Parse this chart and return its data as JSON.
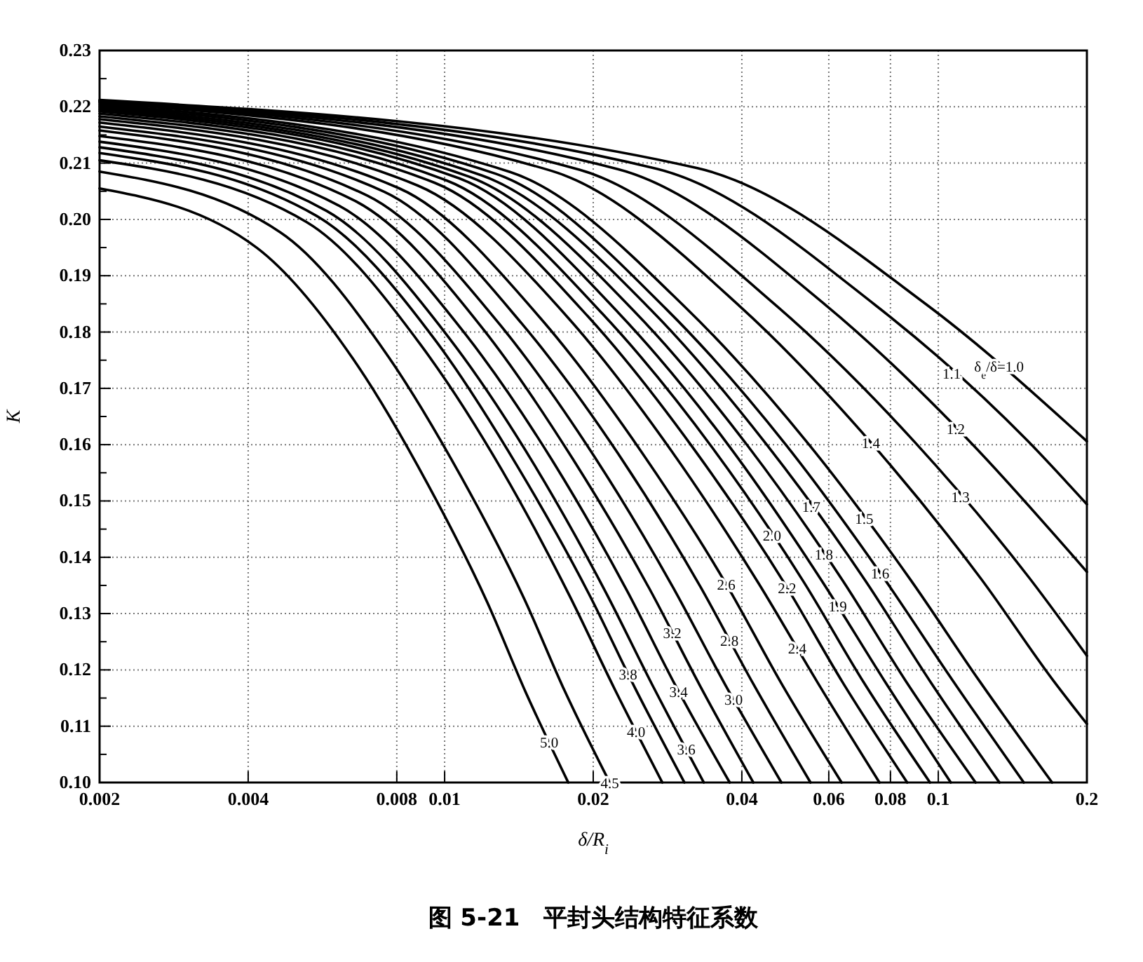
{
  "chart_data": {
    "type": "line",
    "title": "图 5-21　平封头结构特征系数",
    "xlabel": "δ/R$_{i}$",
    "ylabel": "K",
    "log": "x",
    "grid": true,
    "xlim": [
      0.002,
      0.2
    ],
    "xticks": [
      0.002,
      0.004,
      0.008,
      0.01,
      0.02,
      0.04,
      0.06,
      0.08,
      0.1,
      0.2
    ],
    "ylim": [
      0.1,
      0.23
    ],
    "yticks": [
      {
        "value": 0.1,
        "label": "0.10"
      },
      {
        "value": 0.105,
        "label": null
      },
      0.11,
      {
        "value": 0.115,
        "label": null
      },
      0.12,
      {
        "value": 0.125,
        "label": null
      },
      0.13,
      {
        "value": 0.135,
        "label": null
      },
      0.14,
      {
        "value": 0.145,
        "label": null
      },
      0.15,
      {
        "value": 0.155,
        "label": null
      },
      0.16,
      {
        "value": 0.165,
        "label": null
      },
      0.17,
      {
        "value": 0.175,
        "label": null
      },
      0.18,
      {
        "value": 0.185,
        "label": null
      },
      0.19,
      {
        "value": 0.195,
        "label": null
      },
      {
        "value": 0.2,
        "label": "0.20"
      },
      {
        "value": 0.205,
        "label": null
      },
      0.21,
      {
        "value": 0.215,
        "label": null
      },
      0.22,
      {
        "value": 0.225,
        "label": null
      },
      0.23
    ],
    "series": [
      {
        "name": "δ$_{e}$/δ=1.0",
        "color": "#000000",
        "x": [
          0.002,
          0.0325,
          0.0949,
          0.2
        ],
        "values": [
          0.2212,
          0.2091,
          0.1848,
          0.1606
        ]
      },
      {
        "name": "1.1",
        "color": "#000000",
        "x": [
          0.002,
          0.0269,
          0.0745,
          0.152,
          0.2
        ],
        "values": [
          0.2211,
          0.209,
          0.1848,
          0.1606,
          0.1494
        ]
      },
      {
        "name": "1.2",
        "color": "#000000",
        "x": [
          0.002,
          0.0225,
          0.0593,
          0.116,
          0.2
        ],
        "values": [
          0.221,
          0.2089,
          0.1847,
          0.1605,
          0.1374
        ]
      },
      {
        "name": "1.3",
        "color": "#000000",
        "x": [
          0.002,
          0.0188,
          0.0471,
          0.0895,
          0.153,
          0.2
        ],
        "values": [
          0.2209,
          0.2088,
          0.1846,
          0.1605,
          0.1363,
          0.1225
        ]
      },
      {
        "name": "1.4",
        "color": "#000000",
        "x": [
          0.002,
          0.0165,
          0.0397,
          0.073,
          0.122,
          0.171,
          0.2
        ],
        "values": [
          0.2207,
          0.2086,
          0.1845,
          0.1604,
          0.1362,
          0.1181,
          0.1104
        ]
      },
      {
        "name": "1.5",
        "color": "#000000",
        "x": [
          0.002,
          0.0136,
          0.0308,
          0.0545,
          0.0877,
          0.121,
          0.17
        ],
        "values": [
          0.2204,
          0.2084,
          0.1843,
          0.1602,
          0.1361,
          0.1181,
          0.1
        ]
      },
      {
        "name": "1.6",
        "color": "#000000",
        "x": [
          0.002,
          0.0127,
          0.0281,
          0.049,
          0.078,
          0.107,
          0.149
        ],
        "values": [
          0.2201,
          0.2081,
          0.1841,
          0.1601,
          0.136,
          0.1181,
          0.1
        ]
      },
      {
        "name": "1.7",
        "color": "#000000",
        "x": [
          0.002,
          0.0119,
          0.0262,
          0.045,
          0.0711,
          0.0962,
          0.133
        ],
        "values": [
          0.2198,
          0.2078,
          0.1839,
          0.1599,
          0.1359,
          0.118,
          0.1
        ]
      },
      {
        "name": "1.8",
        "color": "#000000",
        "x": [
          0.002,
          0.0112,
          0.0242,
          0.0411,
          0.0641,
          0.0861,
          0.119
        ],
        "values": [
          0.2195,
          0.2076,
          0.1837,
          0.1598,
          0.1358,
          0.1179,
          0.1
        ]
      },
      {
        "name": "1.9",
        "color": "#000000",
        "x": [
          0.002,
          0.0107,
          0.0225,
          0.0378,
          0.0581,
          0.078,
          0.106
        ],
        "values": [
          0.2192,
          0.2073,
          0.1834,
          0.1596,
          0.1358,
          0.1179,
          0.1
        ]
      },
      {
        "name": "2.0",
        "color": "#000000",
        "x": [
          0.002,
          0.0101,
          0.0209,
          0.0349,
          0.0534,
          0.0706,
          0.0962
        ],
        "values": [
          0.2188,
          0.2069,
          0.1832,
          0.1594,
          0.1356,
          0.1178,
          0.1
        ]
      },
      {
        "name": "2.2",
        "color": "#000000",
        "x": [
          0.002,
          0.00955,
          0.0195,
          0.032,
          0.0487,
          0.0641,
          0.0865
        ],
        "values": [
          0.2183,
          0.2065,
          0.1828,
          0.1592,
          0.1355,
          0.1177,
          0.1
        ]
      },
      {
        "name": "2.4",
        "color": "#000000",
        "x": [
          0.002,
          0.00883,
          0.0178,
          0.0288,
          0.0433,
          0.057,
          0.076
        ],
        "values": [
          0.2178,
          0.206,
          0.1825,
          0.1589,
          0.1353,
          0.1177,
          0.1
        ]
      },
      {
        "name": "2.6",
        "color": "#000000",
        "x": [
          0.002,
          0.0081,
          0.0158,
          0.0251,
          0.0372,
          0.0481,
          0.0637
        ],
        "values": [
          0.2172,
          0.2055,
          0.182,
          0.1586,
          0.1352,
          0.1176,
          0.1
        ]
      },
      {
        "name": "2.8",
        "color": "#000000",
        "x": [
          0.002,
          0.00755,
          0.0143,
          0.0225,
          0.0329,
          0.0422,
          0.0551
        ],
        "values": [
          0.2165,
          0.2049,
          0.1816,
          0.1583,
          0.1349,
          0.1175,
          0.1
        ]
      },
      {
        "name": "3.0",
        "color": "#000000",
        "x": [
          0.002,
          0.00698,
          0.013,
          0.0201,
          0.029,
          0.037,
          0.0481
        ],
        "values": [
          0.2158,
          0.2042,
          0.1811,
          0.1579,
          0.1347,
          0.1174,
          0.1
        ]
      },
      {
        "name": "3.2",
        "color": "#000000",
        "x": [
          0.002,
          0.00658,
          0.012,
          0.0182,
          0.026,
          0.0329,
          0.0422
        ],
        "values": [
          0.2148,
          0.2033,
          0.1804,
          0.1574,
          0.1344,
          0.1172,
          0.1
        ]
      },
      {
        "name": "3.4",
        "color": "#000000",
        "x": [
          0.002,
          0.00612,
          0.011,
          0.0166,
          0.0234,
          0.0294,
          0.0378
        ],
        "values": [
          0.2138,
          0.2024,
          0.1797,
          0.1569,
          0.1341,
          0.1171,
          0.1
        ]
      },
      {
        "name": "3.6",
        "color": "#000000",
        "x": [
          0.002,
          0.00577,
          0.0102,
          0.0152,
          0.0212,
          0.0265,
          0.0335
        ],
        "values": [
          0.2128,
          0.2015,
          0.179,
          0.1564,
          0.1338,
          0.1169,
          0.1
        ]
      },
      {
        "name": "3.8",
        "color": "#000000",
        "x": [
          0.002,
          0.00551,
          0.00962,
          0.0141,
          0.0196,
          0.0243,
          0.0306
        ],
        "values": [
          0.2118,
          0.2006,
          0.1783,
          0.1559,
          0.1335,
          0.1168,
          0.1
        ]
      },
      {
        "name": "4.0",
        "color": "#000000",
        "x": [
          0.002,
          0.00526,
          0.009,
          0.0131,
          0.0179,
          0.0221,
          0.0276
        ],
        "values": [
          0.2105,
          0.1995,
          0.1774,
          0.1553,
          0.1332,
          0.1166,
          0.1
        ]
      },
      {
        "name": "4.5",
        "color": "#000000",
        "x": [
          0.002,
          0.00465,
          0.00764,
          0.0108,
          0.0145,
          0.0175,
          0.0216
        ],
        "values": [
          0.2085,
          0.1977,
          0.176,
          0.1543,
          0.1326,
          0.1163,
          0.1
        ]
      },
      {
        "name": "5.0",
        "color": "#000000",
        "x": [
          0.002,
          0.00416,
          0.00667,
          0.00924,
          0.0122,
          0.0146,
          0.0178
        ],
        "values": [
          0.2055,
          0.195,
          0.174,
          0.153,
          0.132,
          0.116,
          0.1
        ]
      }
    ]
  }
}
